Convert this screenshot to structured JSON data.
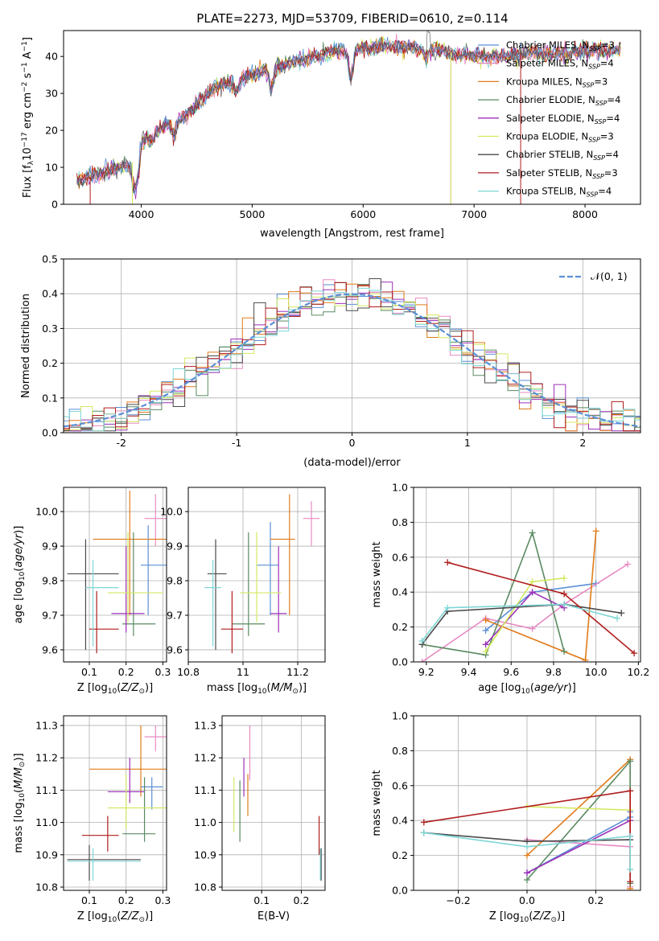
{
  "figure_title": "PLATE=2273, MJD=53709, FIBERID=0610, z=0.114",
  "colors": {
    "chabrier_miles": "#5b8fd6",
    "salpeter_miles": "#e78ac3",
    "kroupa_miles": "#e07b1a",
    "chabrier_elodie": "#5a8a62",
    "salpeter_elodie": "#9c30b8",
    "kroupa_elodie": "#d4e860",
    "chabrier_stelib": "#4a4a4a",
    "salpeter_stelib": "#b01c1c",
    "kroupa_stelib": "#7fd6d6",
    "gaussian": "#5b8fd6"
  },
  "chart_data": [
    {
      "id": "spectrum",
      "type": "line",
      "xlabel": "wavelength [Angstrom, rest frame]",
      "ylabel": "Flux [f_λ10^-17 erg cm^-2 s^-1 A^-1]",
      "xlim": [
        3300,
        8500
      ],
      "ylim": [
        0,
        47
      ],
      "xticks": [
        4000,
        5000,
        6000,
        7000,
        8000
      ],
      "yticks": [
        0,
        10,
        20,
        30,
        40
      ],
      "grid": false,
      "legend_position": "right",
      "legend": [
        "Chabrier MILES, N_SSP=3",
        "Salpeter MILES, N_SSP=4",
        "Kroupa MILES, N_SSP=3",
        "Chabrier ELODIE, N_SSP=4",
        "Salpeter ELODIE, N_SSP=4",
        "Kroupa ELODIE, N_SSP=3",
        "Chabrier STELIB, N_SSP=4",
        "Salpeter STELIB, N_SSP=3",
        "Kroupa STELIB, N_SSP=4"
      ],
      "continuum": [
        [
          3420,
          5.5
        ],
        [
          3500,
          7
        ],
        [
          3600,
          8
        ],
        [
          3700,
          9
        ],
        [
          3800,
          10
        ],
        [
          3900,
          11
        ],
        [
          3950,
          12
        ],
        [
          4000,
          17
        ],
        [
          4100,
          19
        ],
        [
          4200,
          21
        ],
        [
          4300,
          22
        ],
        [
          4400,
          24
        ],
        [
          4500,
          27
        ],
        [
          4600,
          30
        ],
        [
          4700,
          32
        ],
        [
          4800,
          33
        ],
        [
          4900,
          34
        ],
        [
          5000,
          35
        ],
        [
          5100,
          36
        ],
        [
          5200,
          37
        ],
        [
          5300,
          38
        ],
        [
          5400,
          39
        ],
        [
          5500,
          39.5
        ],
        [
          5600,
          40
        ],
        [
          5700,
          41
        ],
        [
          5800,
          41.5
        ],
        [
          5900,
          42
        ],
        [
          6000,
          42.5
        ],
        [
          6100,
          42.5
        ],
        [
          6200,
          43
        ],
        [
          6300,
          42.5
        ],
        [
          6400,
          42.5
        ],
        [
          6500,
          42
        ],
        [
          6600,
          42
        ],
        [
          6700,
          41.5
        ],
        [
          6800,
          41
        ],
        [
          6900,
          40.5
        ],
        [
          7000,
          40
        ],
        [
          7100,
          40
        ],
        [
          7200,
          40
        ],
        [
          7300,
          40
        ],
        [
          7400,
          40.5
        ],
        [
          7500,
          41
        ],
        [
          7600,
          41
        ],
        [
          7700,
          41
        ],
        [
          7800,
          41
        ],
        [
          7900,
          41
        ],
        [
          8000,
          41.5
        ],
        [
          8100,
          42
        ],
        [
          8200,
          41.5
        ],
        [
          8300,
          42
        ]
      ],
      "spikes": [
        {
          "series": "salpeter_stelib",
          "x": 3540
        },
        {
          "series": "kroupa_elodie",
          "x": 3920
        },
        {
          "series": "salpeter_miles",
          "x": 6790
        },
        {
          "series": "kroupa_elodie",
          "x": 6790
        },
        {
          "series": "salpeter_stelib",
          "x": 7420
        }
      ]
    },
    {
      "id": "residuals",
      "type": "histogram",
      "xlabel": "(data-model)/error",
      "ylabel": "Normed distribution",
      "xlim": [
        -2.5,
        2.5
      ],
      "ylim": [
        0,
        0.5
      ],
      "xticks": [
        -2,
        -1,
        0,
        1,
        2
      ],
      "yticks": [
        0.0,
        0.1,
        0.2,
        0.3,
        0.4,
        0.5
      ],
      "grid": true,
      "legend": [
        "𝒩(0, 1)"
      ],
      "legend_position": "top-right",
      "bin_width": 0.1
    },
    {
      "id": "age_vs_Z",
      "type": "scatter",
      "xlabel": "Z [log10(Z/Z☉)]",
      "ylabel": "age  [log10(age/yr)]",
      "xlim": [
        0.03,
        0.31
      ],
      "ylim": [
        9.565,
        10.07
      ],
      "xticks": [
        0.1,
        0.2,
        0.3
      ],
      "yticks": [
        9.6,
        9.7,
        9.8,
        9.9,
        10.0
      ],
      "grid": true,
      "points": [
        {
          "series": "chabrier_miles",
          "x": 0.26,
          "y": 9.845,
          "xerr": [
            0.24,
            0.31
          ],
          "yerr": [
            9.7,
            9.96
          ]
        },
        {
          "series": "salpeter_miles",
          "x": 0.28,
          "y": 9.98,
          "xerr": [
            0.25,
            0.31
          ],
          "yerr": [
            9.9,
            10.05
          ]
        },
        {
          "series": "kroupa_miles",
          "x": 0.21,
          "y": 9.92,
          "xerr": [
            0.11,
            0.31
          ],
          "yerr": [
            9.7,
            10.06
          ]
        },
        {
          "series": "chabrier_elodie",
          "x": 0.22,
          "y": 9.675,
          "xerr": [
            0.19,
            0.28
          ],
          "yerr": [
            9.64,
            9.94
          ]
        },
        {
          "series": "salpeter_elodie",
          "x": 0.2,
          "y": 9.705,
          "xerr": [
            0.16,
            0.25
          ],
          "yerr": [
            9.65,
            9.9
          ]
        },
        {
          "series": "kroupa_elodie",
          "x": 0.205,
          "y": 9.765,
          "xerr": [
            0.15,
            0.3
          ],
          "yerr": [
            9.68,
            9.94
          ]
        },
        {
          "series": "chabrier_stelib",
          "x": 0.09,
          "y": 9.82,
          "xerr": [
            0.04,
            0.18
          ],
          "yerr": [
            9.6,
            9.92
          ]
        },
        {
          "series": "salpeter_stelib",
          "x": 0.12,
          "y": 9.66,
          "xerr": [
            0.1,
            0.18
          ],
          "yerr": [
            9.59,
            9.77
          ]
        },
        {
          "series": "kroupa_stelib",
          "x": 0.11,
          "y": 9.78,
          "xerr": [
            0.09,
            0.18
          ],
          "yerr": [
            9.61,
            9.86
          ]
        }
      ]
    },
    {
      "id": "age_vs_mass",
      "type": "scatter",
      "xlabel": "mass [log10(M/M☉)]",
      "ylabel": "",
      "xlim": [
        10.8,
        11.3
      ],
      "ylim": [
        9.565,
        10.07
      ],
      "xticks": [
        10.8,
        11.0,
        11.2
      ],
      "yticks": [
        9.6,
        9.7,
        9.8,
        9.9,
        10.0
      ],
      "grid": true,
      "points": [
        {
          "series": "chabrier_miles",
          "x": 11.1,
          "y": 9.845,
          "xerr": [
            11.05,
            11.13
          ],
          "yerr": [
            9.7,
            9.97
          ]
        },
        {
          "series": "salpeter_miles",
          "x": 11.25,
          "y": 9.98,
          "xerr": [
            11.22,
            11.28
          ],
          "yerr": [
            9.9,
            10.03
          ]
        },
        {
          "series": "kroupa_miles",
          "x": 11.17,
          "y": 9.92,
          "xerr": [
            11.1,
            11.19
          ],
          "yerr": [
            9.7,
            10.05
          ]
        },
        {
          "series": "chabrier_elodie",
          "x": 11.02,
          "y": 9.675,
          "xerr": [
            10.96,
            11.08
          ],
          "yerr": [
            9.64,
            9.94
          ]
        },
        {
          "series": "salpeter_elodie",
          "x": 11.13,
          "y": 9.705,
          "xerr": [
            11.1,
            11.16
          ],
          "yerr": [
            9.65,
            9.9
          ]
        },
        {
          "series": "kroupa_elodie",
          "x": 11.05,
          "y": 9.765,
          "xerr": [
            10.99,
            11.14
          ],
          "yerr": [
            9.68,
            9.94
          ]
        },
        {
          "series": "chabrier_stelib",
          "x": 10.9,
          "y": 9.82,
          "xerr": [
            10.87,
            10.94
          ],
          "yerr": [
            9.6,
            9.92
          ]
        },
        {
          "series": "salpeter_stelib",
          "x": 10.96,
          "y": 9.66,
          "xerr": [
            10.92,
            11.0
          ],
          "yerr": [
            9.59,
            9.77
          ]
        },
        {
          "series": "kroupa_stelib",
          "x": 10.89,
          "y": 9.78,
          "xerr": [
            10.86,
            10.92
          ],
          "yerr": [
            9.61,
            9.86
          ]
        }
      ]
    },
    {
      "id": "weight_vs_age",
      "type": "line",
      "xlabel": "age  [log10(age/yr)]",
      "ylabel": "mass weight",
      "xlim": [
        9.14,
        10.21
      ],
      "ylim": [
        0,
        1
      ],
      "xticks": [
        9.2,
        9.4,
        9.6,
        9.8,
        10.0,
        10.2
      ],
      "yticks": [
        0.0,
        0.2,
        0.4,
        0.6,
        0.8,
        1.0
      ],
      "grid": true,
      "series": [
        {
          "key": "chabrier_miles",
          "x": [
            9.48,
            9.7,
            10.0
          ],
          "y": [
            0.18,
            0.4,
            0.45
          ]
        },
        {
          "key": "salpeter_miles",
          "x": [
            9.18,
            9.48,
            9.7,
            9.85,
            10.15
          ],
          "y": [
            0.0,
            0.25,
            0.19,
            0.33,
            0.56
          ]
        },
        {
          "key": "kroupa_miles",
          "x": [
            9.48,
            9.95,
            10.0
          ],
          "y": [
            0.24,
            0.01,
            0.75
          ]
        },
        {
          "key": "chabrier_elodie",
          "x": [
            9.18,
            9.48,
            9.7,
            9.85
          ],
          "y": [
            0.1,
            0.04,
            0.74,
            0.06
          ]
        },
        {
          "key": "salpeter_elodie",
          "x": [
            9.48,
            9.7,
            9.85
          ],
          "y": [
            0.1,
            0.4,
            0.31
          ]
        },
        {
          "key": "kroupa_elodie",
          "x": [
            9.48,
            9.7,
            9.85
          ],
          "y": [
            0.06,
            0.46,
            0.48
          ]
        },
        {
          "key": "chabrier_stelib",
          "x": [
            9.18,
            9.3,
            9.85,
            10.12
          ],
          "y": [
            0.1,
            0.29,
            0.33,
            0.28
          ]
        },
        {
          "key": "salpeter_stelib",
          "x": [
            9.3,
            9.85,
            10.18
          ],
          "y": [
            0.57,
            0.39,
            0.05
          ]
        },
        {
          "key": "kroupa_stelib",
          "x": [
            9.18,
            9.3,
            9.85,
            10.1
          ],
          "y": [
            0.12,
            0.31,
            0.33,
            0.25
          ]
        }
      ]
    },
    {
      "id": "mass_vs_Z",
      "type": "scatter",
      "xlabel": "Z [log10(Z/Z☉)]",
      "ylabel": "mass [log10(M/M☉)]",
      "xlim": [
        0.03,
        0.31
      ],
      "ylim": [
        10.79,
        11.33
      ],
      "xticks": [
        0.1,
        0.2,
        0.3
      ],
      "yticks": [
        10.8,
        10.9,
        11.0,
        11.1,
        11.2,
        11.3
      ],
      "grid": true,
      "points": [
        {
          "series": "chabrier_miles",
          "x": 0.27,
          "y": 11.11,
          "xerr": [
            0.24,
            0.3
          ],
          "yerr": [
            11.04,
            11.14
          ]
        },
        {
          "series": "salpeter_miles",
          "x": 0.28,
          "y": 11.265,
          "xerr": [
            0.25,
            0.31
          ],
          "yerr": [
            11.22,
            11.3
          ]
        },
        {
          "series": "kroupa_miles",
          "x": 0.24,
          "y": 11.165,
          "xerr": [
            0.1,
            0.31
          ],
          "yerr": [
            11.08,
            11.3
          ]
        },
        {
          "series": "chabrier_elodie",
          "x": 0.25,
          "y": 10.965,
          "xerr": [
            0.19,
            0.28
          ],
          "yerr": [
            10.94,
            11.14
          ]
        },
        {
          "series": "salpeter_elodie",
          "x": 0.21,
          "y": 11.095,
          "xerr": [
            0.15,
            0.25
          ],
          "yerr": [
            11.06,
            11.2
          ]
        },
        {
          "series": "kroupa_elodie",
          "x": 0.2,
          "y": 11.045,
          "xerr": [
            0.15,
            0.31
          ],
          "yerr": [
            10.98,
            11.15
          ]
        },
        {
          "series": "chabrier_stelib",
          "x": 0.1,
          "y": 10.885,
          "xerr": [
            0.04,
            0.24
          ],
          "yerr": [
            10.82,
            10.93
          ]
        },
        {
          "series": "salpeter_stelib",
          "x": 0.15,
          "y": 10.96,
          "xerr": [
            0.08,
            0.18
          ],
          "yerr": [
            10.91,
            11.02
          ]
        },
        {
          "series": "kroupa_stelib",
          "x": 0.11,
          "y": 10.88,
          "xerr": [
            0.04,
            0.24
          ],
          "yerr": [
            10.82,
            10.92
          ]
        }
      ]
    },
    {
      "id": "mass_vs_ebv",
      "type": "scatter",
      "xlabel": "E(B-V)",
      "ylabel": "",
      "xlim": [
        0.0,
        0.26
      ],
      "ylim": [
        10.79,
        11.33
      ],
      "xticks": [
        0.1,
        0.2
      ],
      "yticks": [
        10.8,
        10.9,
        11.0,
        11.1,
        11.2,
        11.3
      ],
      "grid": true,
      "points": [
        {
          "series": "chabrier_miles",
          "x": 0.25,
          "y": 10.87,
          "yerr": [
            10.82,
            10.92
          ]
        },
        {
          "series": "salpeter_miles",
          "x": 0.07,
          "y": 11.22,
          "yerr": [
            11.13,
            11.3
          ]
        },
        {
          "series": "kroupa_miles",
          "x": 0.065,
          "y": 11.1,
          "yerr": [
            11.02,
            11.15
          ]
        },
        {
          "series": "chabrier_elodie",
          "x": 0.045,
          "y": 11.03,
          "yerr": [
            10.94,
            11.13
          ]
        },
        {
          "series": "salpeter_elodie",
          "x": 0.055,
          "y": 11.14,
          "yerr": [
            11.08,
            11.2
          ]
        },
        {
          "series": "kroupa_elodie",
          "x": 0.03,
          "y": 11.03,
          "yerr": [
            10.97,
            11.14
          ]
        },
        {
          "series": "chabrier_stelib",
          "x": 0.25,
          "y": 10.87,
          "yerr": [
            10.82,
            10.92
          ]
        },
        {
          "series": "salpeter_stelib",
          "x": 0.245,
          "y": 10.96,
          "yerr": [
            10.9,
            11.02
          ]
        },
        {
          "series": "kroupa_stelib",
          "x": 0.248,
          "y": 10.87,
          "yerr": [
            10.82,
            10.92
          ]
        }
      ]
    },
    {
      "id": "weight_vs_Z",
      "type": "line",
      "xlabel": "Z [log10(Z/Z☉)]",
      "ylabel": "mass weight",
      "xlim": [
        -0.33,
        0.33
      ],
      "ylim": [
        0,
        1
      ],
      "xticks": [
        -0.2,
        0.0,
        0.2
      ],
      "yticks": [
        0.0,
        0.2,
        0.4,
        0.6,
        0.8,
        1.0
      ],
      "grid": true,
      "series": [
        {
          "key": "chabrier_miles",
          "x": [
            0.0,
            0.3,
            0.3
          ],
          "y": [
            0.1,
            0.42,
            0.45
          ]
        },
        {
          "key": "salpeter_miles",
          "x": [
            0.0,
            0.3,
            0.3
          ],
          "y": [
            0.29,
            0.25,
            0.02
          ]
        },
        {
          "key": "kroupa_miles",
          "x": [
            0.0,
            0.3,
            0.3
          ],
          "y": [
            0.2,
            0.75,
            0.01
          ]
        },
        {
          "key": "chabrier_elodie",
          "x": [
            0.0,
            0.3,
            0.3
          ],
          "y": [
            0.06,
            0.74,
            0.04
          ]
        },
        {
          "key": "salpeter_elodie",
          "x": [
            0.0,
            0.3,
            0.3
          ],
          "y": [
            0.1,
            0.4,
            0.31
          ]
        },
        {
          "key": "kroupa_elodie",
          "x": [
            0.0,
            0.3
          ],
          "y": [
            0.48,
            0.46
          ]
        },
        {
          "key": "chabrier_stelib",
          "x": [
            -0.3,
            0.0,
            0.3
          ],
          "y": [
            0.33,
            0.28,
            0.29
          ]
        },
        {
          "key": "salpeter_stelib",
          "x": [
            -0.3,
            0.3,
            0.3
          ],
          "y": [
            0.39,
            0.57,
            0.05
          ]
        },
        {
          "key": "kroupa_stelib",
          "x": [
            -0.3,
            0.0,
            0.3,
            0.3
          ],
          "y": [
            0.33,
            0.25,
            0.31,
            0.12
          ]
        }
      ]
    }
  ]
}
